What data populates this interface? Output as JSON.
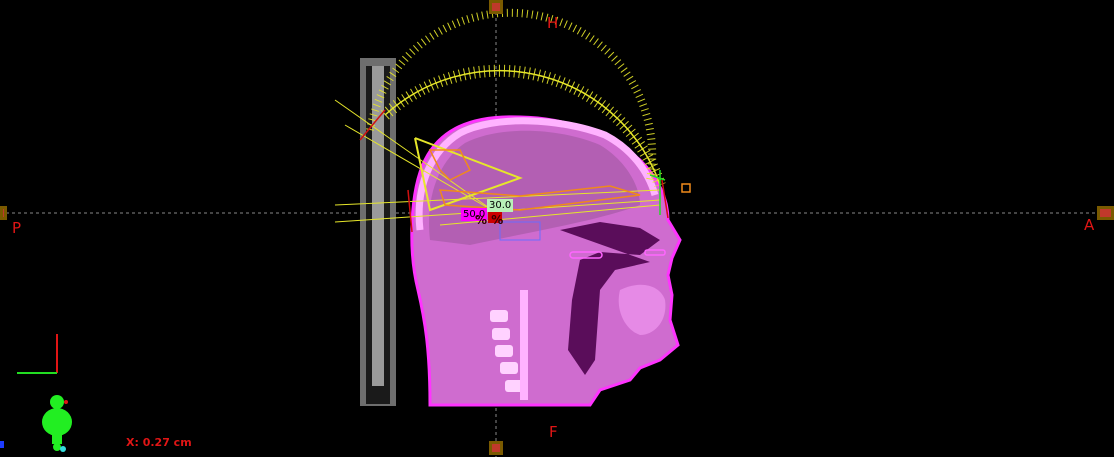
{
  "orientation": {
    "head": "H",
    "feet": "F",
    "posterior": "P",
    "anterior": "A"
  },
  "cursor_readout": "X: 0.27 cm",
  "isodose_labels": {
    "green": "30.0",
    "magenta": "50.0",
    "percent": "% %"
  },
  "colors": {
    "background": "#000000",
    "orientation_text": "#e01515",
    "body_contour": "#ff33ff",
    "beam_arc": "#e6e62a",
    "isodose_30": "#b8f0b8",
    "isodose_50": "#ff00ff",
    "crosshair": "#777777"
  },
  "icons": {
    "axis_indicator": "axis-gizmo-icon",
    "patient_orientation": "patient-figure-icon"
  }
}
